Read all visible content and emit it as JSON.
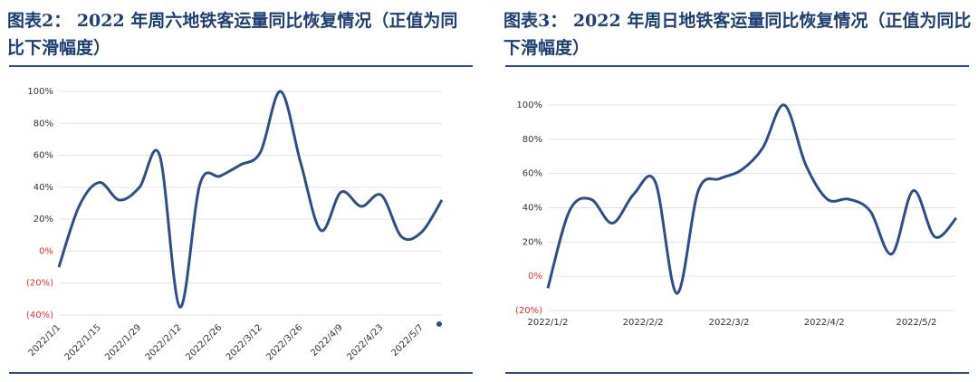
{
  "chart_data": [
    {
      "type": "line",
      "title": "图表2： 2022 年周六地铁客运量同比恢复情况（正值为同比下滑幅度）",
      "x": [
        "2022/1/1",
        "2022/1/8",
        "2022/1/15",
        "2022/1/22",
        "2022/1/29",
        "2022/2/5",
        "2022/2/12",
        "2022/2/19",
        "2022/2/26",
        "2022/3/5",
        "2022/3/12",
        "2022/3/19",
        "2022/3/26",
        "2022/4/2",
        "2022/4/9",
        "2022/4/16",
        "2022/4/23",
        "2022/4/30",
        "2022/5/7",
        "2022/5/14"
      ],
      "series": [
        {
          "name": "周六",
          "color": "#2e4d8f",
          "values": [
            -10,
            28,
            43,
            32,
            40,
            60,
            -35,
            42,
            47,
            54,
            62,
            100,
            55,
            13,
            37,
            28,
            35,
            9,
            12,
            32
          ]
        }
      ],
      "xlim": [
        "2022/1/1",
        "2022/5/14"
      ],
      "xticks": [
        "2022/1/1",
        "2022/1/15",
        "2022/1/29",
        "2022/2/12",
        "2022/2/26",
        "2022/3/12",
        "2022/3/26",
        "2022/4/9",
        "2022/4/23",
        "2022/5/7"
      ],
      "x_label_rotation": -45,
      "ylim": [
        -40,
        100
      ],
      "yticks": [
        {
          "value": -40,
          "label": "(40%)"
        },
        {
          "value": -20,
          "label": "(20%)"
        },
        {
          "value": 0,
          "label": "0%"
        },
        {
          "value": 20,
          "label": "20%"
        },
        {
          "value": 40,
          "label": "40%"
        },
        {
          "value": 60,
          "label": "60%"
        },
        {
          "value": 80,
          "label": "80%"
        },
        {
          "value": 100,
          "label": "100%"
        }
      ],
      "negative_tick_color": "#e8312f",
      "grid": true
    },
    {
      "type": "line",
      "title": "图表3： 2022 年周日地铁客运量同比恢复情况（正值为同比下滑幅度）",
      "x": [
        "2022/1/2",
        "2022/1/9",
        "2022/1/16",
        "2022/1/23",
        "2022/1/30",
        "2022/2/6",
        "2022/2/13",
        "2022/2/20",
        "2022/2/27",
        "2022/3/6",
        "2022/3/13",
        "2022/3/20",
        "2022/3/27",
        "2022/4/3",
        "2022/4/10",
        "2022/4/17",
        "2022/4/24",
        "2022/5/1",
        "2022/5/8",
        "2022/5/15"
      ],
      "series": [
        {
          "name": "周日",
          "color": "#2e4d8f",
          "values": [
            -7,
            38,
            45,
            31,
            48,
            55,
            -10,
            50,
            57,
            62,
            75,
            100,
            65,
            45,
            45,
            38,
            13,
            50,
            23,
            34
          ]
        }
      ],
      "xlim": [
        "2022/1/2",
        "2022/5/15"
      ],
      "xticks": [
        "2022/1/2",
        "2022/2/2",
        "2022/3/2",
        "2022/4/2",
        "2022/5/2"
      ],
      "x_label_rotation": 0,
      "ylim": [
        -20,
        100
      ],
      "yticks": [
        {
          "value": -20,
          "label": "(20%)"
        },
        {
          "value": 0,
          "label": "0%"
        },
        {
          "value": 20,
          "label": "20%"
        },
        {
          "value": 40,
          "label": "40%"
        },
        {
          "value": 60,
          "label": "60%"
        },
        {
          "value": 80,
          "label": "80%"
        },
        {
          "value": 100,
          "label": "100%"
        }
      ],
      "negative_tick_color": "#e8312f",
      "grid": true
    }
  ]
}
